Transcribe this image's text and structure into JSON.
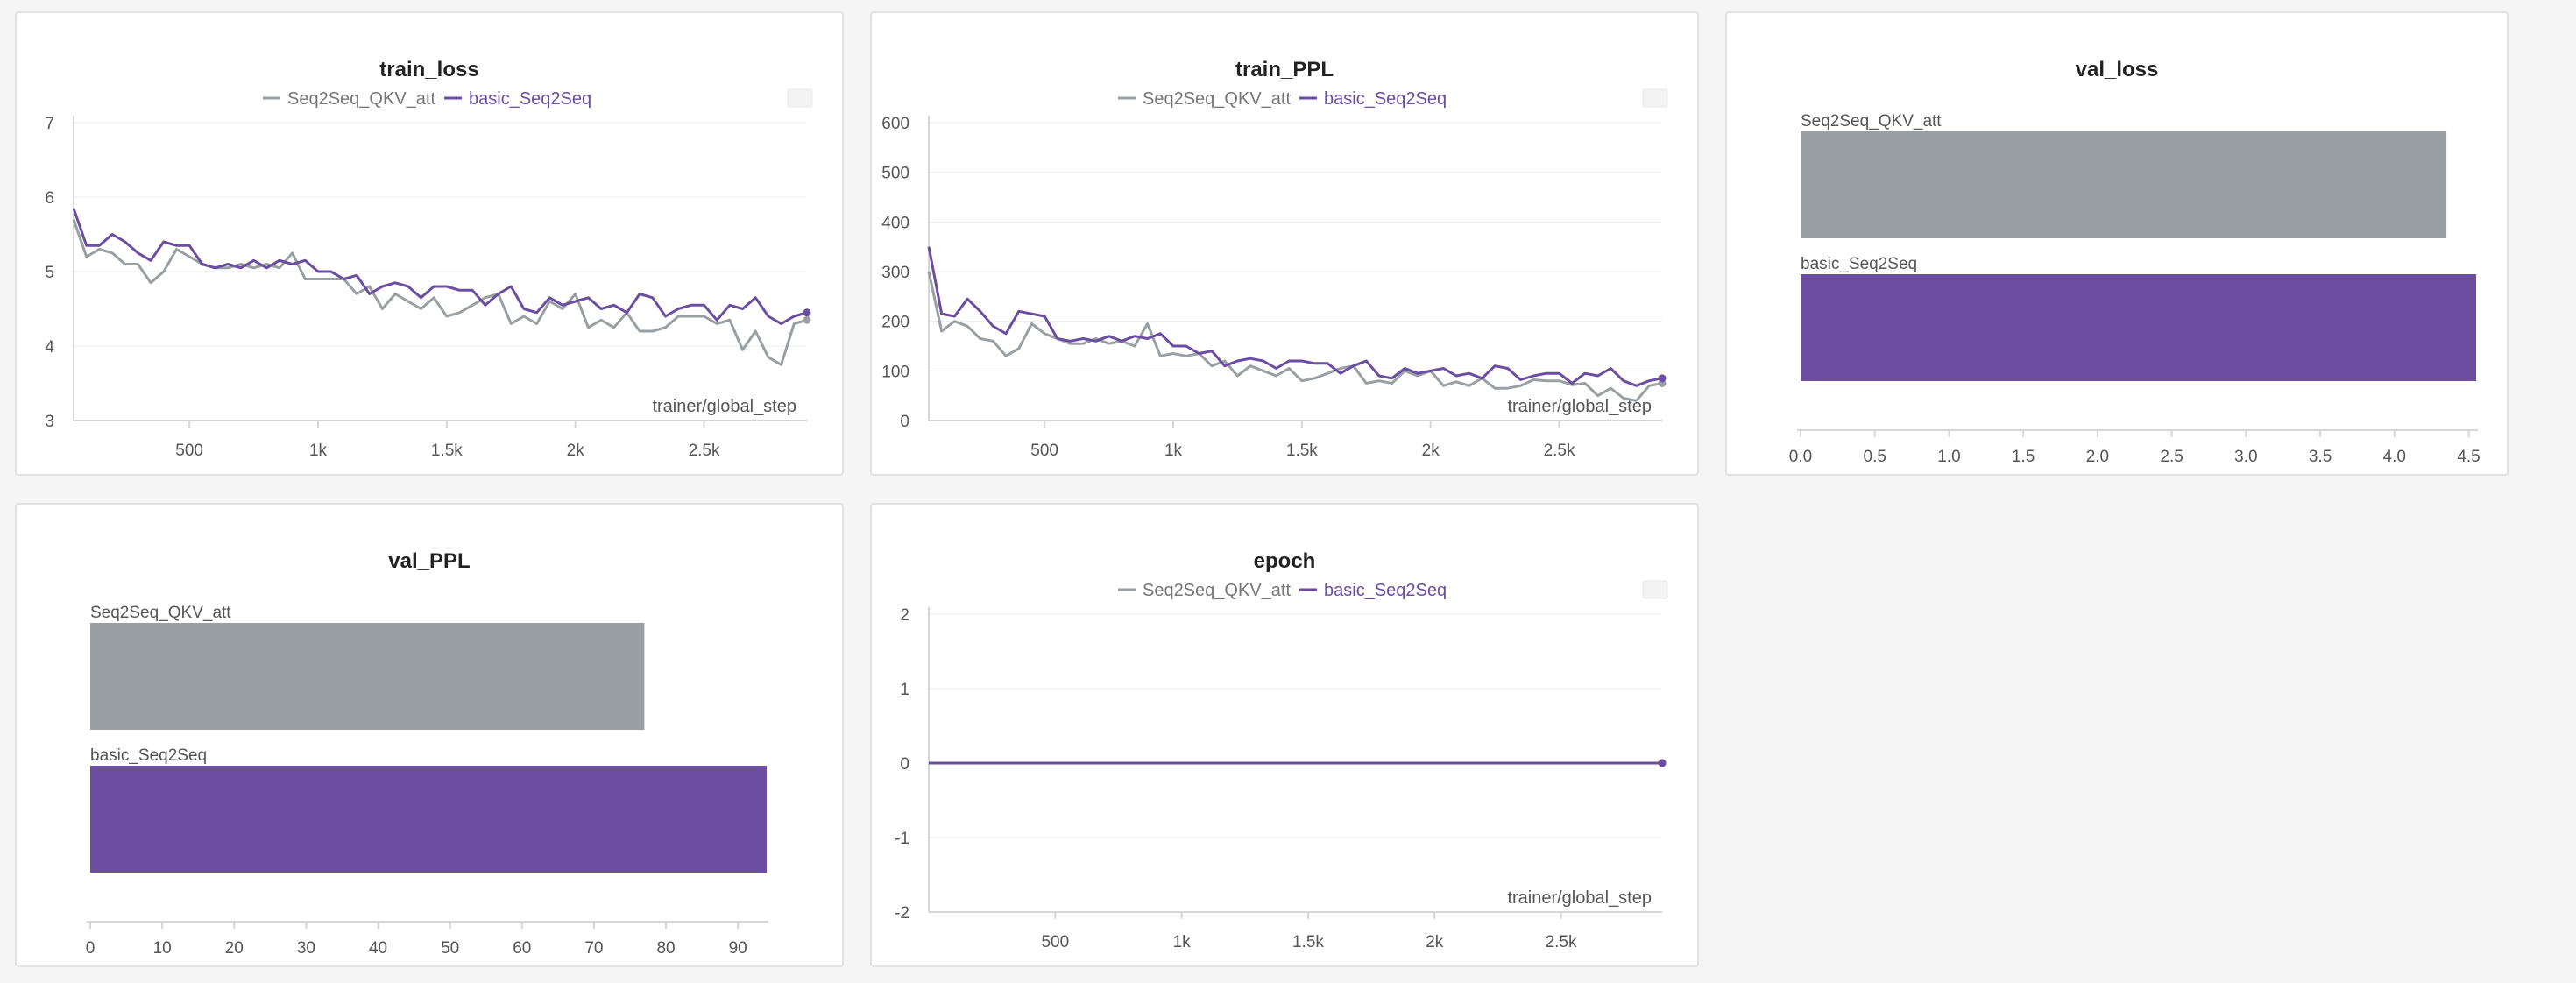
{
  "colors": {
    "series_a": "#9a9fa3",
    "series_b": "#6b4ea0",
    "grid": "#ececec",
    "axis": "#d6d6d6"
  },
  "chart_data": [
    {
      "id": "train_loss",
      "type": "line",
      "title": "train_loss",
      "xlabel": "trainer/global_step",
      "ylabel": "",
      "xlim": [
        50,
        2900
      ],
      "ylim": [
        3,
        7
      ],
      "xticks": [
        500,
        1000,
        1500,
        2000,
        2500
      ],
      "xtick_labels": [
        "500",
        "1k",
        "1.5k",
        "2k",
        "2.5k"
      ],
      "yticks": [
        3,
        4,
        5,
        6,
        7
      ],
      "ytick_labels": [
        "3",
        "4",
        "5",
        "6",
        "7"
      ],
      "legend": "top-center",
      "x": [
        50,
        100,
        150,
        200,
        250,
        300,
        350,
        400,
        450,
        500,
        550,
        600,
        650,
        700,
        750,
        800,
        850,
        900,
        950,
        1000,
        1050,
        1100,
        1150,
        1200,
        1250,
        1300,
        1350,
        1400,
        1450,
        1500,
        1550,
        1600,
        1650,
        1700,
        1750,
        1800,
        1850,
        1900,
        1950,
        2000,
        2050,
        2100,
        2150,
        2200,
        2250,
        2300,
        2350,
        2400,
        2450,
        2500,
        2550,
        2600,
        2650,
        2700,
        2750,
        2800,
        2850,
        2900
      ],
      "series": [
        {
          "name": "Seq2Seq_QKV_att",
          "values": [
            5.7,
            5.2,
            5.3,
            5.25,
            5.1,
            5.1,
            4.85,
            5.0,
            5.3,
            5.2,
            5.1,
            5.05,
            5.05,
            5.1,
            5.05,
            5.1,
            5.05,
            5.25,
            4.9,
            4.9,
            4.9,
            4.9,
            4.7,
            4.8,
            4.5,
            4.7,
            4.6,
            4.5,
            4.65,
            4.4,
            4.45,
            4.55,
            4.65,
            4.7,
            4.3,
            4.4,
            4.3,
            4.6,
            4.5,
            4.7,
            4.25,
            4.35,
            4.25,
            4.45,
            4.2,
            4.2,
            4.25,
            4.4,
            4.4,
            4.4,
            4.3,
            4.35,
            3.95,
            4.2,
            3.85,
            3.75,
            4.3,
            4.35
          ]
        },
        {
          "name": "basic_Seq2Seq",
          "values": [
            5.85,
            5.35,
            5.35,
            5.5,
            5.4,
            5.25,
            5.15,
            5.4,
            5.35,
            5.35,
            5.1,
            5.05,
            5.1,
            5.05,
            5.15,
            5.05,
            5.15,
            5.1,
            5.15,
            5.0,
            5.0,
            4.9,
            4.95,
            4.7,
            4.8,
            4.85,
            4.8,
            4.65,
            4.8,
            4.8,
            4.75,
            4.75,
            4.55,
            4.7,
            4.8,
            4.5,
            4.45,
            4.65,
            4.55,
            4.6,
            4.65,
            4.5,
            4.55,
            4.45,
            4.7,
            4.65,
            4.4,
            4.5,
            4.55,
            4.55,
            4.35,
            4.55,
            4.5,
            4.65,
            4.4,
            4.3,
            4.4,
            4.45
          ]
        }
      ]
    },
    {
      "id": "train_PPL",
      "type": "line",
      "title": "train_PPL",
      "xlabel": "trainer/global_step",
      "ylabel": "",
      "xlim": [
        50,
        2900
      ],
      "ylim": [
        0,
        600
      ],
      "xticks": [
        500,
        1000,
        1500,
        2000,
        2500
      ],
      "xtick_labels": [
        "500",
        "1k",
        "1.5k",
        "2k",
        "2.5k"
      ],
      "yticks": [
        0,
        100,
        200,
        300,
        400,
        500,
        600
      ],
      "ytick_labels": [
        "0",
        "100",
        "200",
        "300",
        "400",
        "500",
        "600"
      ],
      "legend": "top-center",
      "x": [
        50,
        100,
        150,
        200,
        250,
        300,
        350,
        400,
        450,
        500,
        550,
        600,
        650,
        700,
        750,
        800,
        850,
        900,
        950,
        1000,
        1050,
        1100,
        1150,
        1200,
        1250,
        1300,
        1350,
        1400,
        1450,
        1500,
        1550,
        1600,
        1650,
        1700,
        1750,
        1800,
        1850,
        1900,
        1950,
        2000,
        2050,
        2100,
        2150,
        2200,
        2250,
        2300,
        2350,
        2400,
        2450,
        2500,
        2550,
        2600,
        2650,
        2700,
        2750,
        2800,
        2850,
        2900
      ],
      "series": [
        {
          "name": "Seq2Seq_QKV_att",
          "values": [
            300,
            180,
            200,
            190,
            165,
            160,
            130,
            145,
            195,
            175,
            165,
            155,
            155,
            165,
            155,
            160,
            150,
            195,
            130,
            135,
            130,
            135,
            110,
            120,
            90,
            110,
            100,
            90,
            105,
            80,
            85,
            95,
            105,
            110,
            75,
            80,
            75,
            100,
            90,
            100,
            70,
            78,
            70,
            85,
            65,
            65,
            70,
            82,
            80,
            80,
            72,
            75,
            50,
            65,
            45,
            40,
            70,
            75
          ]
        },
        {
          "name": "basic_Seq2Seq",
          "values": [
            350,
            215,
            210,
            245,
            220,
            190,
            175,
            220,
            215,
            210,
            165,
            160,
            165,
            160,
            170,
            160,
            170,
            165,
            175,
            150,
            150,
            135,
            140,
            110,
            120,
            125,
            120,
            105,
            120,
            120,
            115,
            115,
            95,
            110,
            120,
            90,
            85,
            105,
            95,
            100,
            105,
            90,
            95,
            85,
            110,
            105,
            82,
            90,
            95,
            95,
            75,
            95,
            90,
            105,
            80,
            70,
            80,
            85
          ]
        }
      ]
    },
    {
      "id": "val_loss",
      "type": "bar",
      "orientation": "horizontal",
      "title": "val_loss",
      "categories": [
        "Seq2Seq_QKV_att",
        "basic_Seq2Seq"
      ],
      "values": [
        4.35,
        4.55
      ],
      "xlim": [
        0,
        4.55
      ],
      "xticks": [
        0,
        0.5,
        1,
        1.5,
        2,
        2.5,
        3,
        3.5,
        4,
        4.5
      ],
      "xtick_labels": [
        "0.0",
        "0.5",
        "1.0",
        "1.5",
        "2.0",
        "2.5",
        "3.0",
        "3.5",
        "4.0",
        "4.5"
      ]
    },
    {
      "id": "val_PPL",
      "type": "bar",
      "orientation": "horizontal",
      "title": "val_PPL",
      "categories": [
        "Seq2Seq_QKV_att",
        "basic_Seq2Seq"
      ],
      "values": [
        77,
        94
      ],
      "xlim": [
        0,
        94
      ],
      "xticks": [
        0,
        10,
        20,
        30,
        40,
        50,
        60,
        70,
        80,
        90
      ],
      "xtick_labels": [
        "0",
        "10",
        "20",
        "30",
        "40",
        "50",
        "60",
        "70",
        "80",
        "90"
      ]
    },
    {
      "id": "epoch",
      "type": "line",
      "title": "epoch",
      "xlabel": "trainer/global_step",
      "ylabel": "",
      "xlim": [
        0,
        2900
      ],
      "ylim": [
        -2,
        2
      ],
      "xticks": [
        500,
        1000,
        1500,
        2000,
        2500
      ],
      "xtick_labels": [
        "500",
        "1k",
        "1.5k",
        "2k",
        "2.5k"
      ],
      "yticks": [
        -2,
        -1,
        0,
        1,
        2
      ],
      "ytick_labels": [
        "-2",
        "-1",
        "0",
        "1",
        "2"
      ],
      "legend": "top-center",
      "x": [
        0,
        2900
      ],
      "series": [
        {
          "name": "Seq2Seq_QKV_att",
          "values": [
            0,
            0
          ]
        },
        {
          "name": "basic_Seq2Seq",
          "values": [
            0,
            0
          ]
        }
      ]
    }
  ]
}
